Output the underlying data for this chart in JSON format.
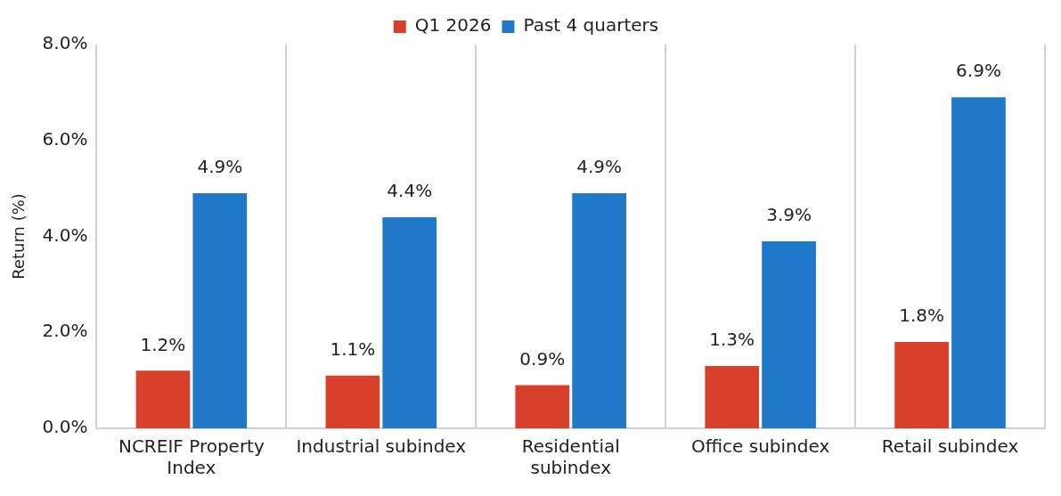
{
  "chart_data": {
    "type": "bar",
    "ylabel": "Return (%)",
    "categories": [
      "NCREIF Property Index",
      "Industrial subindex",
      "Residential subindex",
      "Office subindex",
      "Retail subindex"
    ],
    "series": [
      {
        "name": "Q1 2026",
        "color": "#d9402b",
        "values": [
          1.2,
          1.1,
          0.9,
          1.3,
          1.8
        ],
        "value_labels": [
          "1.2%",
          "1.1%",
          "0.9%",
          "1.3%",
          "1.8%"
        ]
      },
      {
        "name": "Past 4 quarters",
        "color": "#1f78c8",
        "values": [
          4.9,
          4.4,
          4.9,
          3.9,
          6.9
        ],
        "value_labels": [
          "4.9%",
          "4.4%",
          "4.9%",
          "3.9%",
          "6.9%"
        ]
      }
    ],
    "ylim": [
      0,
      8
    ],
    "yticks": [
      {
        "value": 0,
        "label": "0.0%"
      },
      {
        "value": 2,
        "label": "2.0%"
      },
      {
        "value": 4,
        "label": "4.0%"
      },
      {
        "value": 6,
        "label": "6.0%"
      },
      {
        "value": 8,
        "label": "8.0%"
      }
    ],
    "grid": "x",
    "legend": "top"
  }
}
